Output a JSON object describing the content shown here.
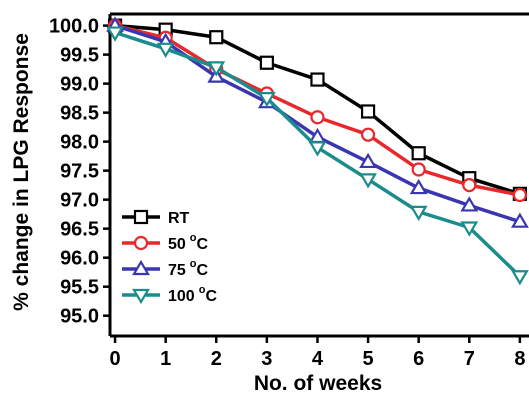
{
  "chart_data": {
    "type": "line",
    "xlabel": "No. of weeks",
    "ylabel": "% change in LPG Response",
    "x": [
      0,
      1,
      2,
      3,
      4,
      5,
      6,
      7,
      8
    ],
    "x_ticks": [
      "0",
      "1",
      "2",
      "3",
      "4",
      "5",
      "6",
      "7",
      "8"
    ],
    "y_ticks": [
      "95.0",
      "95.5",
      "96.0",
      "96.5",
      "97.0",
      "97.5",
      "98.0",
      "98.5",
      "99.0",
      "99.5",
      "100.0"
    ],
    "xlim": [
      -0.1,
      8.2
    ],
    "ylim": [
      94.65,
      100.2
    ],
    "grid": false,
    "legend_position": "bottom-left",
    "series": [
      {
        "name": "RT",
        "unit_sup": "",
        "color": "#000000",
        "marker": "square",
        "values": [
          100.0,
          99.93,
          99.8,
          99.36,
          99.07,
          98.52,
          97.8,
          97.37,
          97.1
        ]
      },
      {
        "name": "50",
        "unit_sup": "o",
        "unit": "C",
        "color": "#e8282a",
        "marker": "circle",
        "values": [
          100.0,
          99.79,
          99.25,
          98.83,
          98.42,
          98.12,
          97.52,
          97.25,
          97.08
        ]
      },
      {
        "name": "75",
        "unit_sup": "o",
        "unit": "C",
        "color": "#3a36b2",
        "marker": "triangle-up",
        "values": [
          100.0,
          99.72,
          99.12,
          98.68,
          98.08,
          97.65,
          97.2,
          96.9,
          96.62
        ]
      },
      {
        "name": "100",
        "unit_sup": "o",
        "unit": "C",
        "color": "#1b8c8c",
        "marker": "triangle-down",
        "values": [
          99.88,
          99.6,
          99.28,
          98.75,
          97.9,
          97.35,
          96.79,
          96.52,
          95.68
        ]
      }
    ]
  }
}
